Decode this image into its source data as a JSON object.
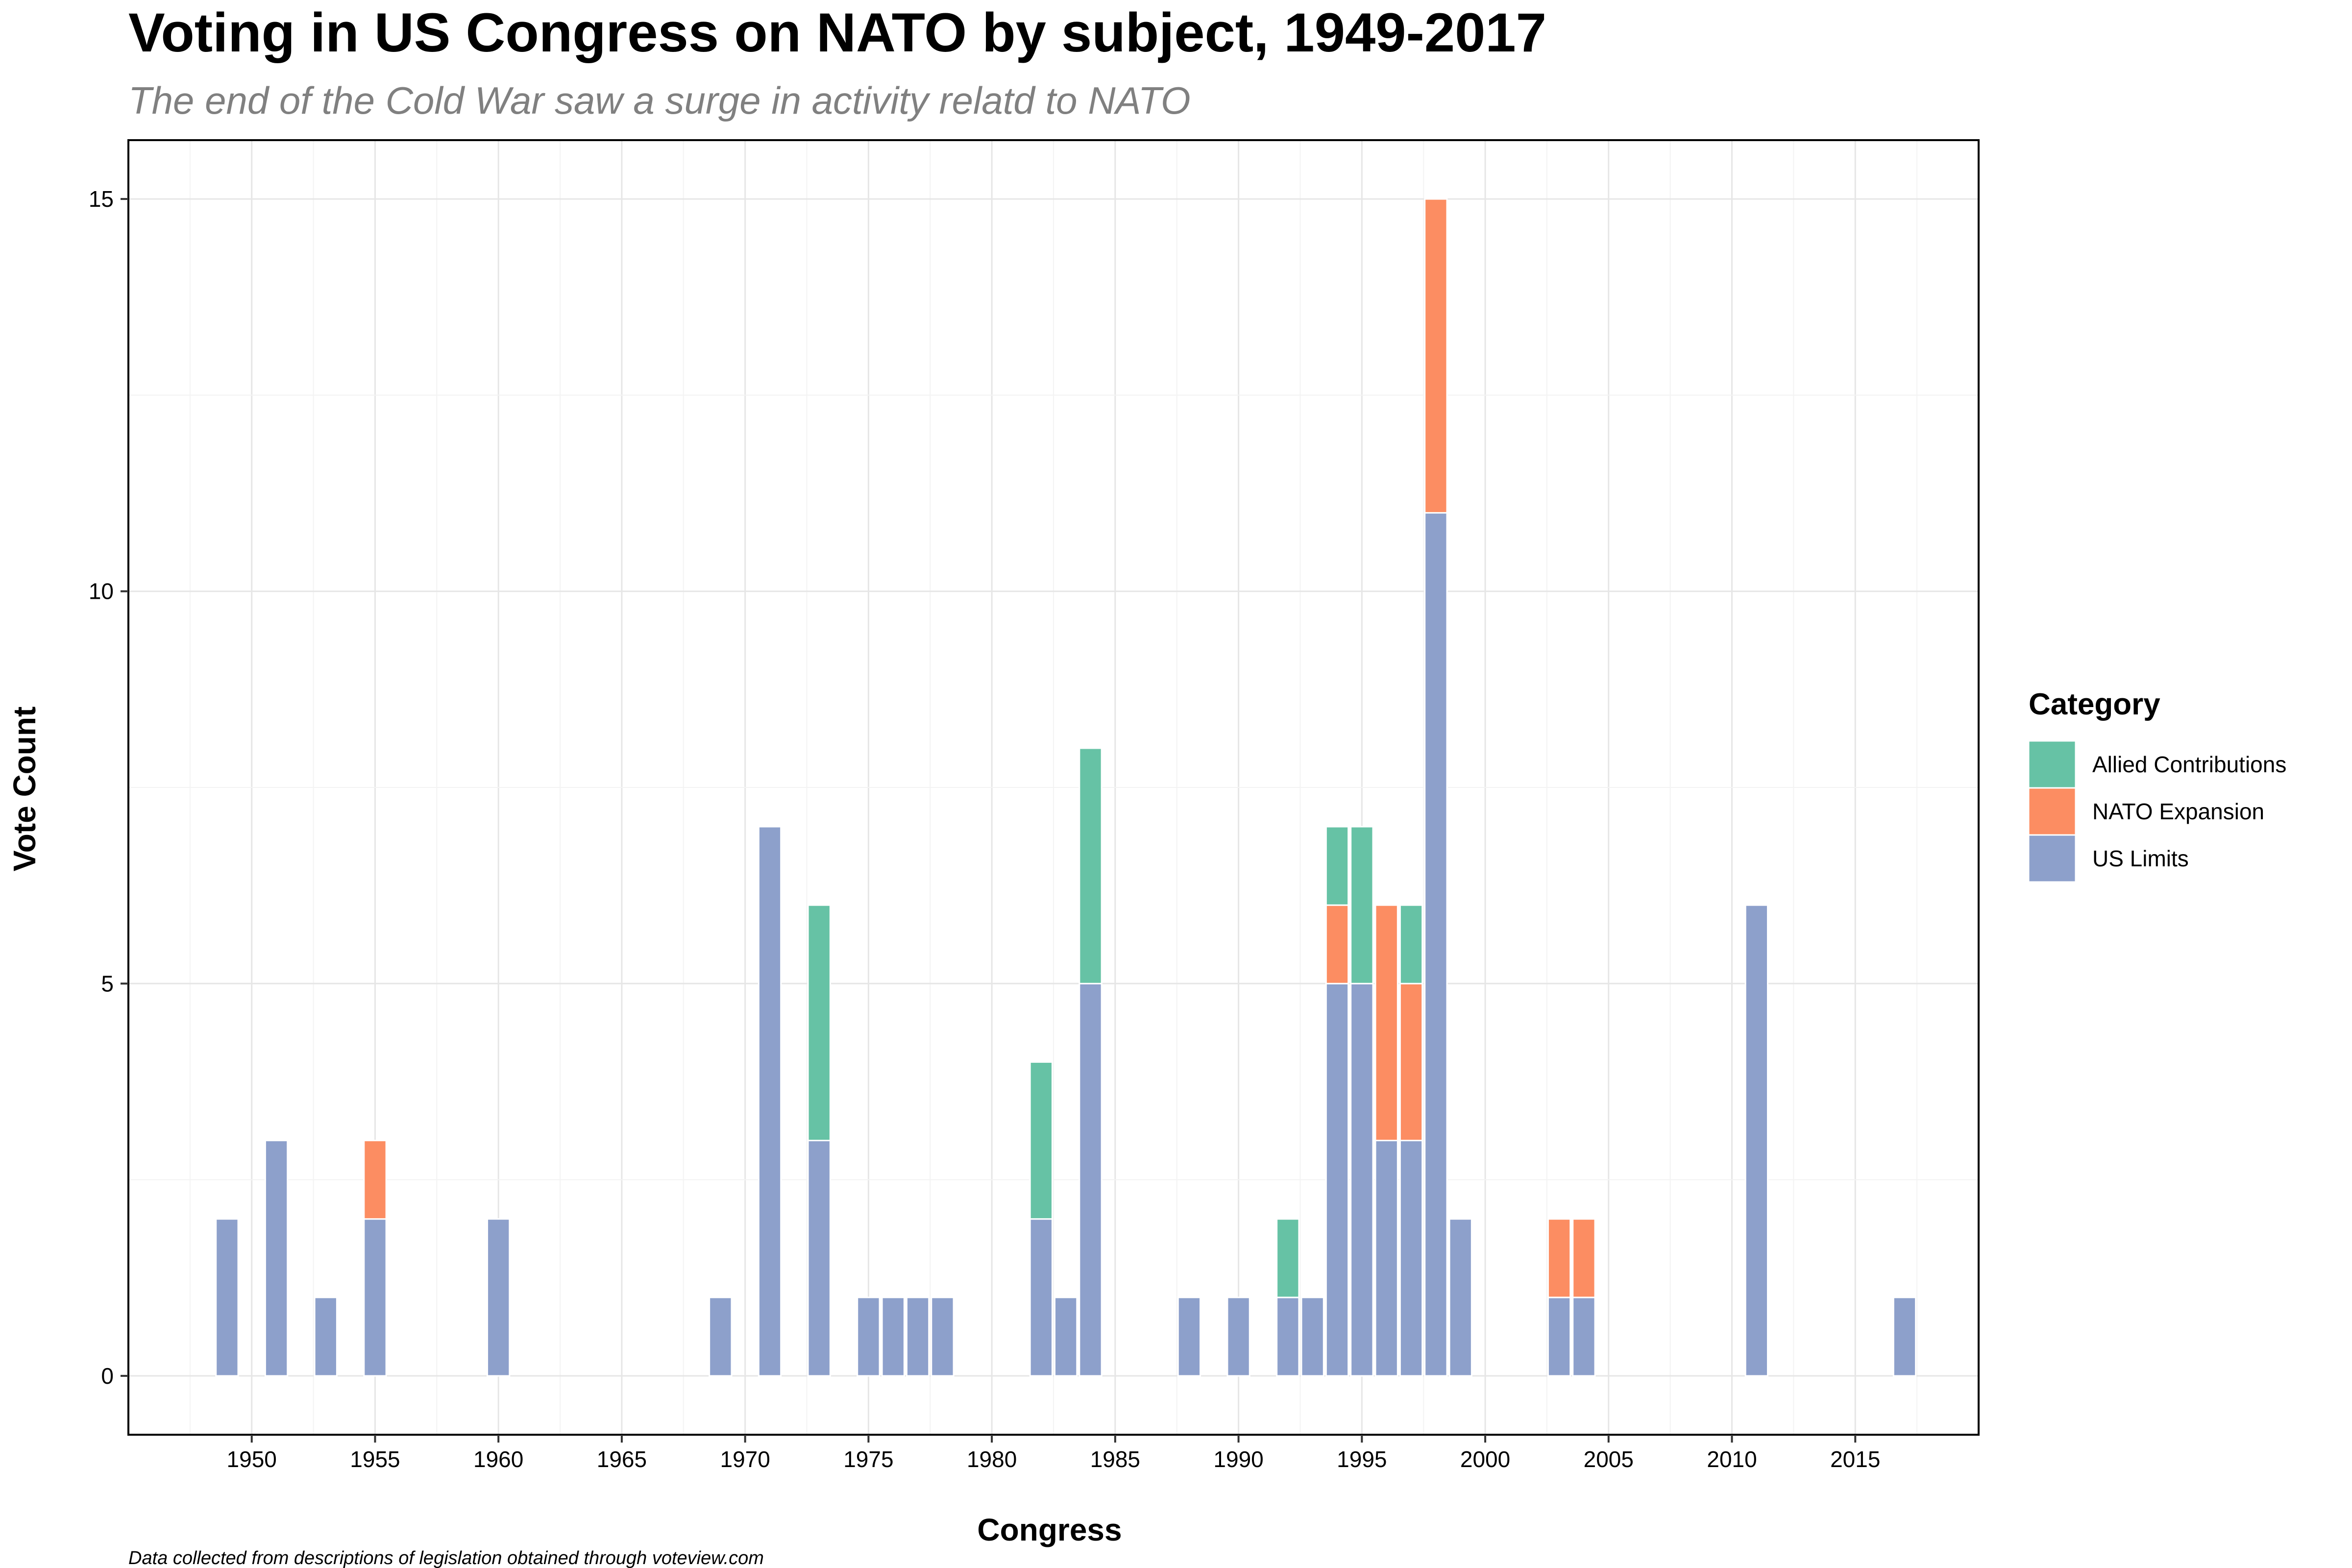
{
  "chart_data": {
    "type": "bar",
    "stacked": true,
    "title": "Voting in US Congress on NATO by subject, 1949-2017",
    "subtitle": "The end of the Cold War saw a surge in activity relatd to NATO",
    "xlabel": "Congress",
    "ylabel": "Vote Count",
    "caption": "Data collected from descriptions of legislation obtained through voteview.com",
    "xlim": [
      1945,
      2020
    ],
    "ylim": [
      -0.75,
      15.75
    ],
    "x_ticks": [
      1950,
      1955,
      1960,
      1965,
      1970,
      1975,
      1980,
      1985,
      1990,
      1995,
      2000,
      2005,
      2010,
      2015
    ],
    "y_ticks": [
      0,
      5,
      10,
      15
    ],
    "grid": true,
    "legend": {
      "title": "Category",
      "position": "right"
    },
    "x": [
      1949,
      1951,
      1953,
      1955,
      1960,
      1969,
      1971,
      1973,
      1975,
      1976,
      1977,
      1978,
      1982,
      1983,
      1984,
      1988,
      1990,
      1992,
      1993,
      1994,
      1995,
      1996,
      1997,
      1998,
      1999,
      2003,
      2004,
      2011,
      2017
    ],
    "series": [
      {
        "name": "US Limits",
        "color": "#8DA0CB",
        "values": [
          2,
          3,
          1,
          2,
          2,
          1,
          7,
          3,
          1,
          1,
          1,
          1,
          2,
          1,
          5,
          1,
          1,
          1,
          1,
          5,
          5,
          3,
          3,
          11,
          2,
          1,
          1,
          6,
          1
        ]
      },
      {
        "name": "NATO Expansion",
        "color": "#FC8D62",
        "values": [
          0,
          0,
          0,
          1,
          0,
          0,
          0,
          0,
          0,
          0,
          0,
          0,
          0,
          0,
          0,
          0,
          0,
          0,
          0,
          1,
          0,
          3,
          2,
          4,
          0,
          1,
          1,
          0,
          0
        ]
      },
      {
        "name": "Allied Contributions",
        "color": "#66C2A5",
        "values": [
          0,
          0,
          0,
          0,
          0,
          0,
          0,
          3,
          0,
          0,
          0,
          0,
          2,
          0,
          3,
          0,
          0,
          1,
          0,
          1,
          2,
          0,
          1,
          0,
          0,
          0,
          0,
          0,
          0
        ]
      }
    ],
    "legend_order": [
      "Allied Contributions",
      "NATO Expansion",
      "US Limits"
    ]
  }
}
